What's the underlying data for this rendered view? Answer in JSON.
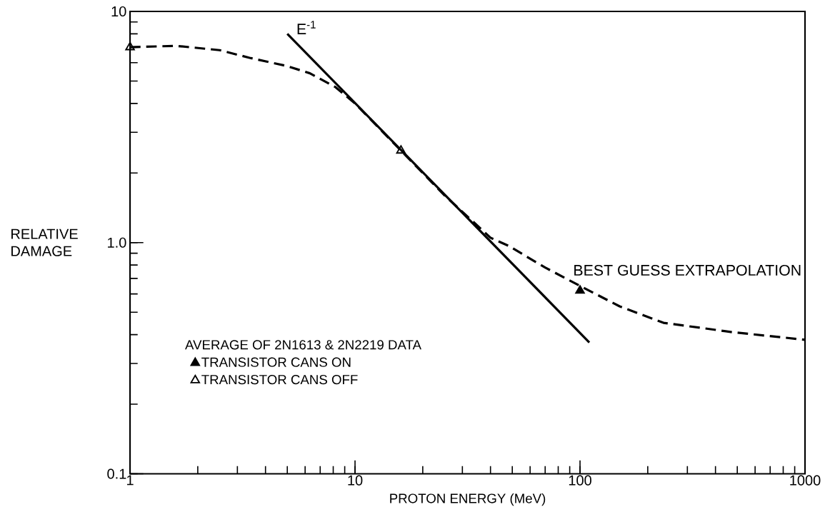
{
  "chart_data": {
    "type": "line",
    "xlabel": "PROTON ENERGY (MeV)",
    "ylabel": "RELATIVE DAMAGE",
    "log": "xy",
    "xlim": [
      1,
      1000
    ],
    "ylim": [
      0.1,
      10
    ],
    "xticks": [
      1,
      10,
      100,
      1000
    ],
    "yticks": [
      0.1,
      {
        "value": 1,
        "label": "1.0"
      },
      10
    ],
    "legend": "bottom left",
    "legend_title": "AVERAGE OF 2N1613 & 2N2219 DATA",
    "series": [
      {
        "name": "E$^{-1}$",
        "color": "#000000",
        "line_style": "solid",
        "x": [
          5,
          110
        ],
        "values": [
          8.0,
          0.37
        ]
      },
      {
        "name": "BEST GUESS EXTRAPOLATION",
        "color": "#000000",
        "line_style": "dashed",
        "x": [
          1,
          1.6,
          2.5,
          3.4,
          5,
          6.3,
          8.2,
          10,
          16,
          25,
          40,
          48,
          70,
          100,
          150,
          235,
          475,
          1000
        ],
        "values": [
          7.0,
          7.1,
          6.8,
          6.3,
          5.8,
          5.4,
          4.7,
          4.0,
          2.5,
          1.6,
          1.05,
          0.97,
          0.78,
          0.65,
          0.53,
          0.45,
          0.41,
          0.38
        ]
      },
      {
        "name": "TRANSISTOR CANS ON",
        "type": "scatter",
        "marker": "triangle",
        "color": "#000000",
        "x": [
          100
        ],
        "values": [
          0.62
        ]
      },
      {
        "name": "TRANSISTOR CANS OFF",
        "type": "scatter",
        "marker": "triangle open",
        "color": "#000000",
        "x": [
          1,
          16
        ],
        "values": [
          7.0,
          2.5
        ]
      }
    ]
  }
}
